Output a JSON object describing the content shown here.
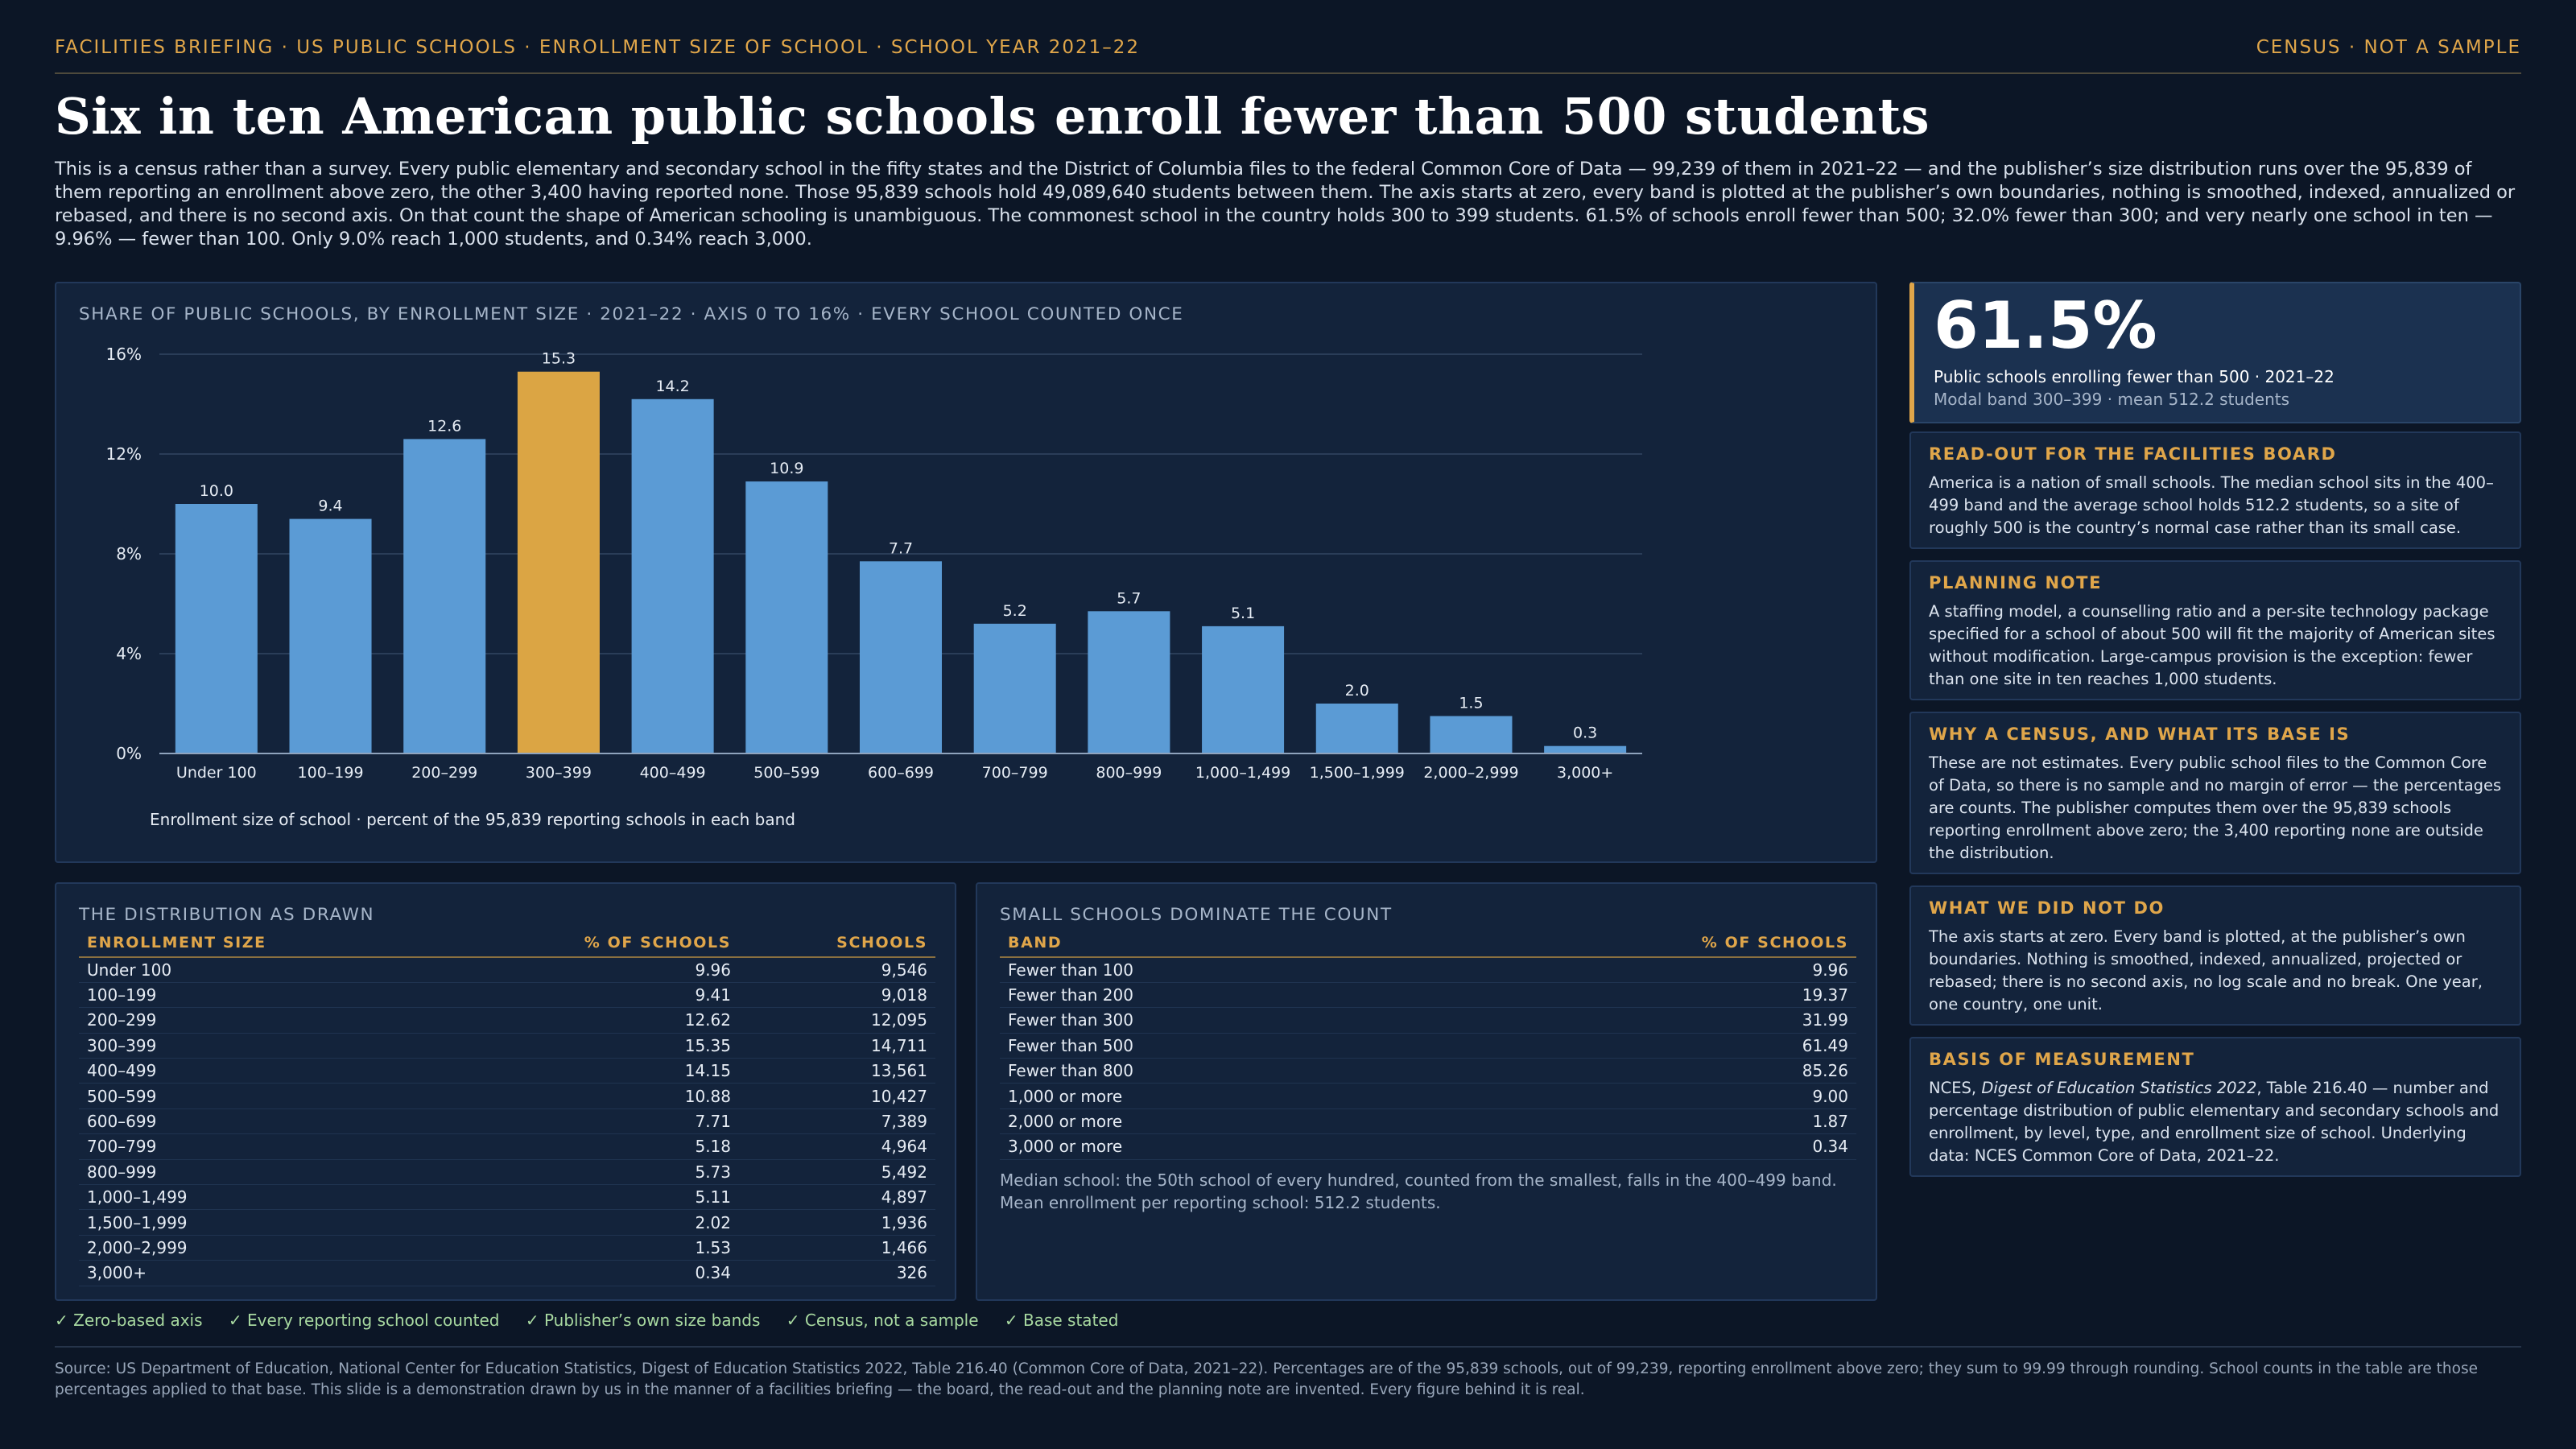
{
  "header": {
    "kicker": "FACILITIES BRIEFING · US PUBLIC SCHOOLS · ENROLLMENT SIZE OF SCHOOL · SCHOOL YEAR 2021–22",
    "badge": "CENSUS · NOT A SAMPLE"
  },
  "title": "Six in ten American public schools enroll fewer than 500 students",
  "intro": "This is a census rather than a survey. Every public elementary and secondary school in the fifty states and the District of Columbia files to the federal Common Core of Data — 99,239 of them in 2021–22 — and the publisher’s size distribution runs over the 95,839 of them reporting an enrollment above zero, the other 3,400 having reported none. Those 95,839 schools hold 49,089,640 students between them. The axis starts at zero, every band is plotted at the publisher’s own boundaries, nothing is smoothed, indexed, annualized or rebased, and there is no second axis. On that count the shape of American schooling is unambiguous. The commonest school in the country holds 300 to 399 students. 61.5% of schools enroll fewer than 500; 32.0% fewer than 300; and very nearly one school in ten — 9.96% — fewer than 100. Only 9.0% reach 1,000 students, and 0.34% reach 3,000.",
  "chart_panel_title": "SHARE OF PUBLIC SCHOOLS, BY ENROLLMENT SIZE · 2021–22 · AXIS 0 TO 16% · EVERY SCHOOL COUNTED ONCE",
  "chart_data": {
    "type": "bar",
    "categories": [
      "Under 100",
      "100–199",
      "200–299",
      "300–399",
      "400–499",
      "500–599",
      "600–699",
      "700–799",
      "800–999",
      "1,000–1,499",
      "1,500–1,999",
      "2,000–2,999",
      "3,000+"
    ],
    "values": [
      10.0,
      9.4,
      12.6,
      15.3,
      14.2,
      10.9,
      7.7,
      5.2,
      5.7,
      5.1,
      2.0,
      1.5,
      0.3
    ],
    "value_labels": [
      "10.0",
      "9.4",
      "12.6",
      "15.3",
      "14.2",
      "10.9",
      "7.7",
      "5.2",
      "5.7",
      "5.1",
      "2.0",
      "1.5",
      "0.3"
    ],
    "highlight": "300–399",
    "ylim": [
      0,
      16
    ],
    "yticks": [
      0,
      4,
      8,
      12,
      16
    ],
    "ytick_labels": [
      "0%",
      "4%",
      "8%",
      "12%",
      "16%"
    ],
    "xlabel": "Enrollment size of school · percent of the 95,839 reporting schools in each band",
    "grid": true,
    "colors": {
      "bar": "#5b9bd5",
      "highlight": "#dba544",
      "grid": "#2a3d58",
      "axis": "#8fa3bd"
    }
  },
  "table1": {
    "title": "THE DISTRIBUTION AS DRAWN",
    "headers": [
      "ENROLLMENT SIZE",
      "% OF SCHOOLS",
      "SCHOOLS"
    ],
    "rows": [
      [
        "Under 100",
        "9.96",
        "9,546"
      ],
      [
        "100–199",
        "9.41",
        "9,018"
      ],
      [
        "200–299",
        "12.62",
        "12,095"
      ],
      [
        "300–399",
        "15.35",
        "14,711"
      ],
      [
        "400–499",
        "14.15",
        "13,561"
      ],
      [
        "500–599",
        "10.88",
        "10,427"
      ],
      [
        "600–699",
        "7.71",
        "7,389"
      ],
      [
        "700–799",
        "5.18",
        "4,964"
      ],
      [
        "800–999",
        "5.73",
        "5,492"
      ],
      [
        "1,000–1,499",
        "5.11",
        "4,897"
      ],
      [
        "1,500–1,999",
        "2.02",
        "1,936"
      ],
      [
        "2,000–2,999",
        "1.53",
        "1,466"
      ],
      [
        "3,000+",
        "0.34",
        "326"
      ]
    ]
  },
  "table2": {
    "title": "SMALL SCHOOLS DOMINATE THE COUNT",
    "headers": [
      "BAND",
      "% OF SCHOOLS"
    ],
    "rows": [
      [
        "Fewer than 100",
        "9.96"
      ],
      [
        "Fewer than 200",
        "19.37"
      ],
      [
        "Fewer than 300",
        "31.99"
      ],
      [
        "Fewer than 500",
        "61.49"
      ],
      [
        "Fewer than 800",
        "85.26"
      ],
      [
        "1,000 or more",
        "9.00"
      ],
      [
        "2,000 or more",
        "1.87"
      ],
      [
        "3,000 or more",
        "0.34"
      ]
    ],
    "note": "Median school: the 50th school of every hundred, counted from the smallest, falls in the 400–499 band. Mean enrollment per reporting school: 512.2 students."
  },
  "kpi": {
    "value": "61.5%",
    "label": "Public schools enrolling fewer than 500 · 2021–22",
    "sub": "Modal band 300–399 · mean 512.2 students"
  },
  "cards": [
    {
      "heading": "READ-OUT FOR THE FACILITIES BOARD",
      "body": "America is a nation of small schools. The median school sits in the 400–499 band and the average school holds 512.2 students, so a site of roughly 500 is the country’s normal case rather than its small case."
    },
    {
      "heading": "PLANNING NOTE",
      "body": "A staffing model, a counselling ratio and a per-site technology package specified for a school of about 500 will fit the majority of American sites without modification. Large-campus provision is the exception: fewer than one site in ten reaches 1,000 students."
    },
    {
      "heading": "WHY A CENSUS, AND WHAT ITS BASE IS",
      "body": "These are not estimates. Every public school files to the Common Core of Data, so there is no sample and no margin of error — the percentages are counts. The publisher computes them over the 95,839 schools reporting enrollment above zero; the 3,400 reporting none are outside the distribution."
    },
    {
      "heading": "WHAT WE DID NOT DO",
      "body": "The axis starts at zero. Every band is plotted, at the publisher’s own boundaries. Nothing is smoothed, indexed, annualized, projected or rebased; there is no second axis, no log scale and no break. One year, one country, one unit."
    },
    {
      "heading": "BASIS OF MEASUREMENT",
      "body_pre": "NCES, ",
      "body_em": "Digest of Education Statistics 2022",
      "body_post": ", Table 216.40 — number and percentage distribution of public elementary and secondary schools and enrollment, by level, type, and enrollment size of school. Underlying data: NCES Common Core of Data, 2021–22."
    }
  ],
  "checks": [
    "✓ Zero-based axis",
    "✓ Every reporting school counted",
    "✓ Publisher’s own size bands",
    "✓ Census, not a sample",
    "✓ Base stated"
  ],
  "source": "Source: US Department of Education, National Center for Education Statistics, Digest of Education Statistics 2022, Table 216.40 (Common Core of Data, 2021–22). Percentages are of the 95,839 schools, out of 99,239, reporting enrollment above zero; they sum to 99.99 through rounding. School counts in the table are those percentages applied to that base. This slide is a demonstration drawn by us in the manner of a facilities briefing — the board, the read-out and the planning note are invented. Every figure behind it is real."
}
